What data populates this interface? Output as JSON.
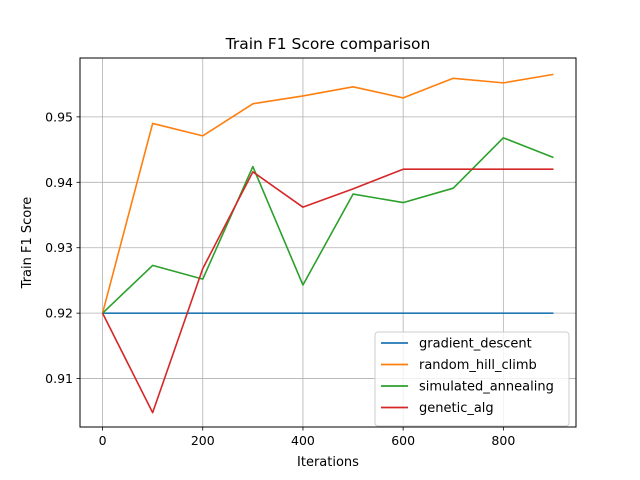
{
  "chart_data": {
    "type": "line",
    "title": "Train F1 Score comparison",
    "xlabel": "Iterations",
    "ylabel": "Train F1 Score",
    "xlim": [
      -45,
      945
    ],
    "ylim": [
      0.9026,
      0.959
    ],
    "xticks": [
      0,
      200,
      400,
      600,
      800
    ],
    "xtick_labels": [
      "0",
      "200",
      "400",
      "600",
      "800"
    ],
    "yticks": [
      0.91,
      0.92,
      0.93,
      0.94,
      0.95
    ],
    "ytick_labels": [
      "0.91",
      "0.92",
      "0.93",
      "0.94",
      "0.95"
    ],
    "grid": true,
    "legend_position": "lower-right",
    "x": [
      0,
      100,
      200,
      300,
      400,
      500,
      600,
      700,
      800,
      900
    ],
    "series": [
      {
        "name": "gradient_descent",
        "color": "#1f77b4",
        "values": [
          0.92,
          0.92,
          0.92,
          0.92,
          0.92,
          0.92,
          0.92,
          0.92,
          0.92,
          0.92
        ]
      },
      {
        "name": "random_hill_climb",
        "color": "#ff7f0e",
        "values": [
          0.92,
          0.949,
          0.9471,
          0.952,
          0.9532,
          0.9546,
          0.9529,
          0.9559,
          0.9552,
          0.9565
        ]
      },
      {
        "name": "simulated_annealing",
        "color": "#2ca02c",
        "values": [
          0.92,
          0.9273,
          0.9252,
          0.9424,
          0.9243,
          0.9382,
          0.9369,
          0.9391,
          0.9468,
          0.9438
        ]
      },
      {
        "name": "genetic_alg",
        "color": "#d62728",
        "values": [
          0.92,
          0.9048,
          0.9268,
          0.9416,
          0.9362,
          0.939,
          0.942,
          0.942,
          0.942,
          0.942
        ]
      }
    ]
  }
}
